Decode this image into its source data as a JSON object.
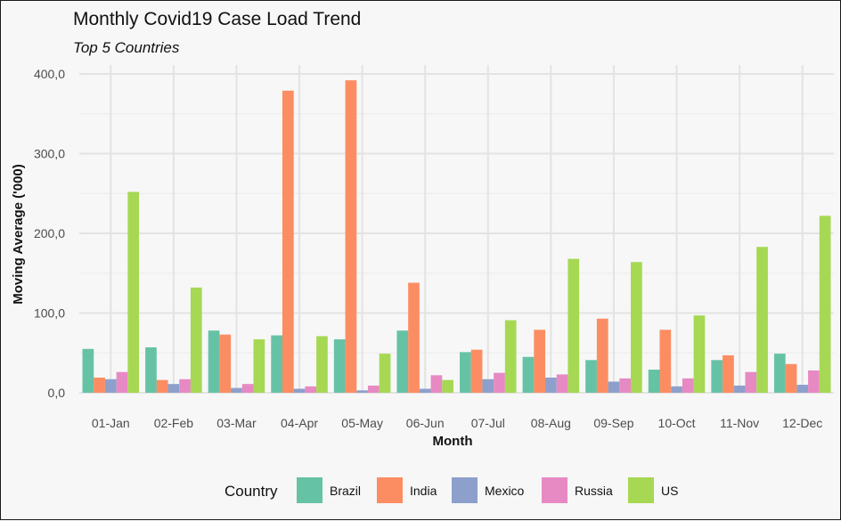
{
  "chart_data": {
    "type": "bar",
    "title": "Monthly Covid19 Case Load Trend",
    "subtitle": "Top 5 Countries",
    "xlabel": "Month",
    "ylabel": "Moving Average ('000)",
    "ylim": [
      0,
      400
    ],
    "yticks": [
      0,
      100,
      200,
      300,
      400
    ],
    "ytick_labels": [
      "0,0",
      "100,0",
      "200,0",
      "300,0",
      "400,0"
    ],
    "grid": true,
    "legend_title": "Country",
    "legend_position": "bottom",
    "categories": [
      "01-Jan",
      "02-Feb",
      "03-Mar",
      "04-Apr",
      "05-May",
      "06-Jun",
      "07-Jul",
      "08-Aug",
      "09-Sep",
      "10-Oct",
      "11-Nov",
      "12-Dec"
    ],
    "series": [
      {
        "name": "Brazil",
        "color": "#66c2a5",
        "values": [
          55,
          57,
          78,
          72,
          67,
          78,
          51,
          45,
          41,
          29,
          41,
          49
        ]
      },
      {
        "name": "India",
        "color": "#fc8d62",
        "values": [
          19,
          16,
          73,
          379,
          392,
          138,
          54,
          79,
          93,
          79,
          47,
          36
        ]
      },
      {
        "name": "Mexico",
        "color": "#8da0cb",
        "values": [
          17,
          11,
          6,
          5,
          3,
          5,
          17,
          19,
          14,
          8,
          9,
          10
        ]
      },
      {
        "name": "Russia",
        "color": "#e78ac3",
        "values": [
          26,
          17,
          11,
          8,
          9,
          22,
          25,
          23,
          18,
          18,
          26,
          28
        ]
      },
      {
        "name": "US",
        "color": "#a6d854",
        "values": [
          252,
          132,
          67,
          71,
          49,
          16,
          91,
          168,
          164,
          97,
          183,
          222
        ]
      }
    ]
  }
}
